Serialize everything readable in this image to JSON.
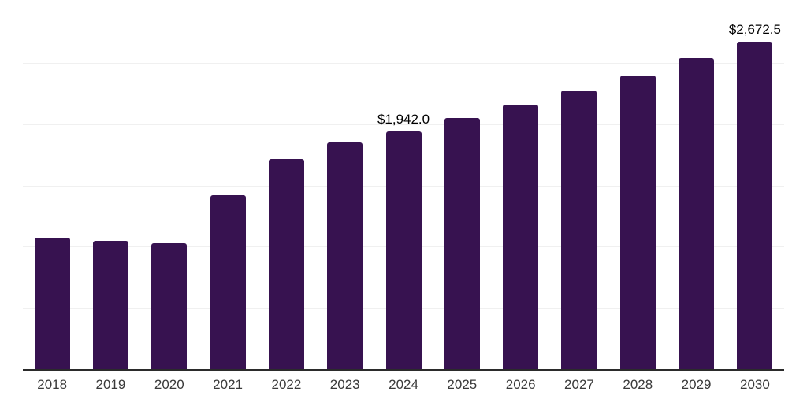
{
  "chart_data": {
    "type": "bar",
    "title": "",
    "xlabel": "",
    "ylabel": "",
    "categories": [
      "2018",
      "2019",
      "2020",
      "2021",
      "2022",
      "2023",
      "2024",
      "2025",
      "2026",
      "2027",
      "2028",
      "2029",
      "2030"
    ],
    "values": [
      1070,
      1050,
      1030,
      1420,
      1715,
      1850,
      1942.0,
      2050,
      2160,
      2275,
      2395,
      2535,
      2672.5
    ],
    "data_labels": {
      "2024": "$1,942.0",
      "2030": "$2,672.5"
    },
    "ylim": [
      0,
      3000
    ],
    "gridline_interval": 500,
    "grid": "horizontal-only",
    "y_tick_labels_visible": false,
    "legend_position": "none",
    "colors": {
      "bar": "#371250",
      "axis_line": "#2b2b2b",
      "gridline": "#f0f0f0",
      "tick_label": "#3a3a3a",
      "data_label": "#000000",
      "background": "#ffffff"
    }
  }
}
